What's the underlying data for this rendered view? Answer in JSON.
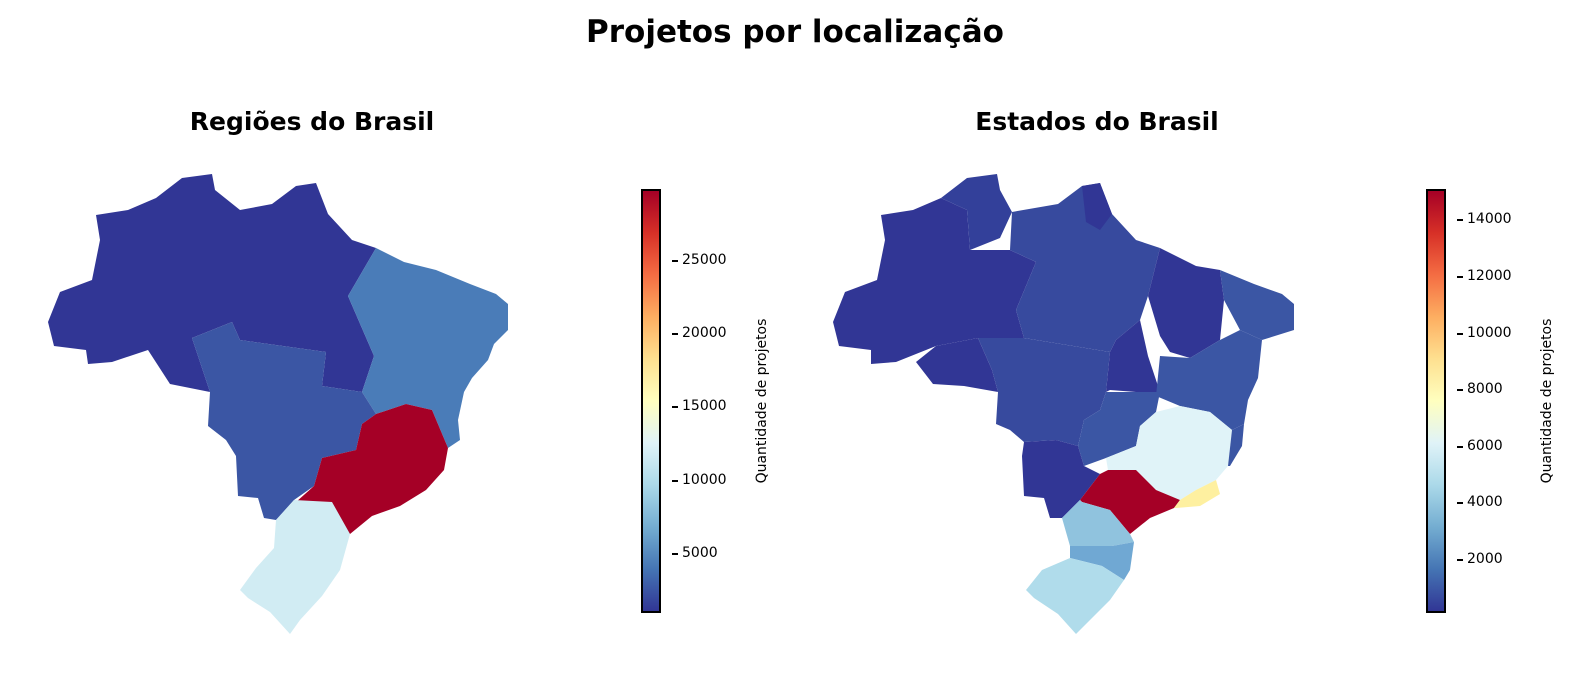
{
  "figure": {
    "title": "Projetos por localização"
  },
  "left_map": {
    "title": "Regiões do Brasil",
    "colorbar_label": "Quantidade de projetos",
    "ticks": [
      "5000",
      "10000",
      "15000",
      "20000",
      "25000"
    ],
    "scale": [
      1000,
      29500
    ]
  },
  "right_map": {
    "title": "Estados do Brasil",
    "colorbar_label": "Quantidade de projetos",
    "ticks": [
      "2000",
      "4000",
      "6000",
      "8000",
      "10000",
      "12000",
      "14000"
    ],
    "scale": [
      0,
      15000
    ]
  },
  "colormap": "RdYlBu_r",
  "colors": {
    "norte": "#313695",
    "nordeste": "#4a7cb8",
    "centro_oeste": "#3b56a4",
    "sudeste": "#a50026",
    "sul": "#d1ecf3",
    "sp": "#a50026",
    "rj": "#fef0a0",
    "mg": "#e0f3f8",
    "pr": "#90c3de",
    "sc": "#70a8d3",
    "rs": "#b0dceb"
  }
}
